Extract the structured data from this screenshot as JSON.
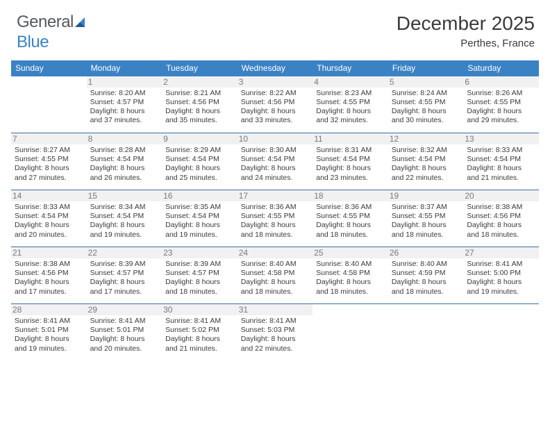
{
  "branding": {
    "logo_general": "General",
    "logo_blue": "Blue"
  },
  "header": {
    "month_title": "December 2025",
    "location": "Perthes, France"
  },
  "colors": {
    "header_bg": "#3b82c4",
    "header_text": "#ffffff",
    "row_border": "#3b6ea0",
    "daynum_bg": "#f1f1f1",
    "daynum_color": "#7a7a7a",
    "body_text": "#3a3a3a",
    "logo_blue": "#3b82c4",
    "logo_gray": "#545a60"
  },
  "weekdays": [
    "Sunday",
    "Monday",
    "Tuesday",
    "Wednesday",
    "Thursday",
    "Friday",
    "Saturday"
  ],
  "layout": {
    "start_offset": 1,
    "days_in_month": 31
  },
  "days": {
    "1": {
      "sunrise": "Sunrise: 8:20 AM",
      "sunset": "Sunset: 4:57 PM",
      "daylight": "Daylight: 8 hours and 37 minutes."
    },
    "2": {
      "sunrise": "Sunrise: 8:21 AM",
      "sunset": "Sunset: 4:56 PM",
      "daylight": "Daylight: 8 hours and 35 minutes."
    },
    "3": {
      "sunrise": "Sunrise: 8:22 AM",
      "sunset": "Sunset: 4:56 PM",
      "daylight": "Daylight: 8 hours and 33 minutes."
    },
    "4": {
      "sunrise": "Sunrise: 8:23 AM",
      "sunset": "Sunset: 4:55 PM",
      "daylight": "Daylight: 8 hours and 32 minutes."
    },
    "5": {
      "sunrise": "Sunrise: 8:24 AM",
      "sunset": "Sunset: 4:55 PM",
      "daylight": "Daylight: 8 hours and 30 minutes."
    },
    "6": {
      "sunrise": "Sunrise: 8:26 AM",
      "sunset": "Sunset: 4:55 PM",
      "daylight": "Daylight: 8 hours and 29 minutes."
    },
    "7": {
      "sunrise": "Sunrise: 8:27 AM",
      "sunset": "Sunset: 4:55 PM",
      "daylight": "Daylight: 8 hours and 27 minutes."
    },
    "8": {
      "sunrise": "Sunrise: 8:28 AM",
      "sunset": "Sunset: 4:54 PM",
      "daylight": "Daylight: 8 hours and 26 minutes."
    },
    "9": {
      "sunrise": "Sunrise: 8:29 AM",
      "sunset": "Sunset: 4:54 PM",
      "daylight": "Daylight: 8 hours and 25 minutes."
    },
    "10": {
      "sunrise": "Sunrise: 8:30 AM",
      "sunset": "Sunset: 4:54 PM",
      "daylight": "Daylight: 8 hours and 24 minutes."
    },
    "11": {
      "sunrise": "Sunrise: 8:31 AM",
      "sunset": "Sunset: 4:54 PM",
      "daylight": "Daylight: 8 hours and 23 minutes."
    },
    "12": {
      "sunrise": "Sunrise: 8:32 AM",
      "sunset": "Sunset: 4:54 PM",
      "daylight": "Daylight: 8 hours and 22 minutes."
    },
    "13": {
      "sunrise": "Sunrise: 8:33 AM",
      "sunset": "Sunset: 4:54 PM",
      "daylight": "Daylight: 8 hours and 21 minutes."
    },
    "14": {
      "sunrise": "Sunrise: 8:33 AM",
      "sunset": "Sunset: 4:54 PM",
      "daylight": "Daylight: 8 hours and 20 minutes."
    },
    "15": {
      "sunrise": "Sunrise: 8:34 AM",
      "sunset": "Sunset: 4:54 PM",
      "daylight": "Daylight: 8 hours and 19 minutes."
    },
    "16": {
      "sunrise": "Sunrise: 8:35 AM",
      "sunset": "Sunset: 4:54 PM",
      "daylight": "Daylight: 8 hours and 19 minutes."
    },
    "17": {
      "sunrise": "Sunrise: 8:36 AM",
      "sunset": "Sunset: 4:55 PM",
      "daylight": "Daylight: 8 hours and 18 minutes."
    },
    "18": {
      "sunrise": "Sunrise: 8:36 AM",
      "sunset": "Sunset: 4:55 PM",
      "daylight": "Daylight: 8 hours and 18 minutes."
    },
    "19": {
      "sunrise": "Sunrise: 8:37 AM",
      "sunset": "Sunset: 4:55 PM",
      "daylight": "Daylight: 8 hours and 18 minutes."
    },
    "20": {
      "sunrise": "Sunrise: 8:38 AM",
      "sunset": "Sunset: 4:56 PM",
      "daylight": "Daylight: 8 hours and 18 minutes."
    },
    "21": {
      "sunrise": "Sunrise: 8:38 AM",
      "sunset": "Sunset: 4:56 PM",
      "daylight": "Daylight: 8 hours and 17 minutes."
    },
    "22": {
      "sunrise": "Sunrise: 8:39 AM",
      "sunset": "Sunset: 4:57 PM",
      "daylight": "Daylight: 8 hours and 17 minutes."
    },
    "23": {
      "sunrise": "Sunrise: 8:39 AM",
      "sunset": "Sunset: 4:57 PM",
      "daylight": "Daylight: 8 hours and 18 minutes."
    },
    "24": {
      "sunrise": "Sunrise: 8:40 AM",
      "sunset": "Sunset: 4:58 PM",
      "daylight": "Daylight: 8 hours and 18 minutes."
    },
    "25": {
      "sunrise": "Sunrise: 8:40 AM",
      "sunset": "Sunset: 4:58 PM",
      "daylight": "Daylight: 8 hours and 18 minutes."
    },
    "26": {
      "sunrise": "Sunrise: 8:40 AM",
      "sunset": "Sunset: 4:59 PM",
      "daylight": "Daylight: 8 hours and 18 minutes."
    },
    "27": {
      "sunrise": "Sunrise: 8:41 AM",
      "sunset": "Sunset: 5:00 PM",
      "daylight": "Daylight: 8 hours and 19 minutes."
    },
    "28": {
      "sunrise": "Sunrise: 8:41 AM",
      "sunset": "Sunset: 5:01 PM",
      "daylight": "Daylight: 8 hours and 19 minutes."
    },
    "29": {
      "sunrise": "Sunrise: 8:41 AM",
      "sunset": "Sunset: 5:01 PM",
      "daylight": "Daylight: 8 hours and 20 minutes."
    },
    "30": {
      "sunrise": "Sunrise: 8:41 AM",
      "sunset": "Sunset: 5:02 PM",
      "daylight": "Daylight: 8 hours and 21 minutes."
    },
    "31": {
      "sunrise": "Sunrise: 8:41 AM",
      "sunset": "Sunset: 5:03 PM",
      "daylight": "Daylight: 8 hours and 22 minutes."
    }
  }
}
